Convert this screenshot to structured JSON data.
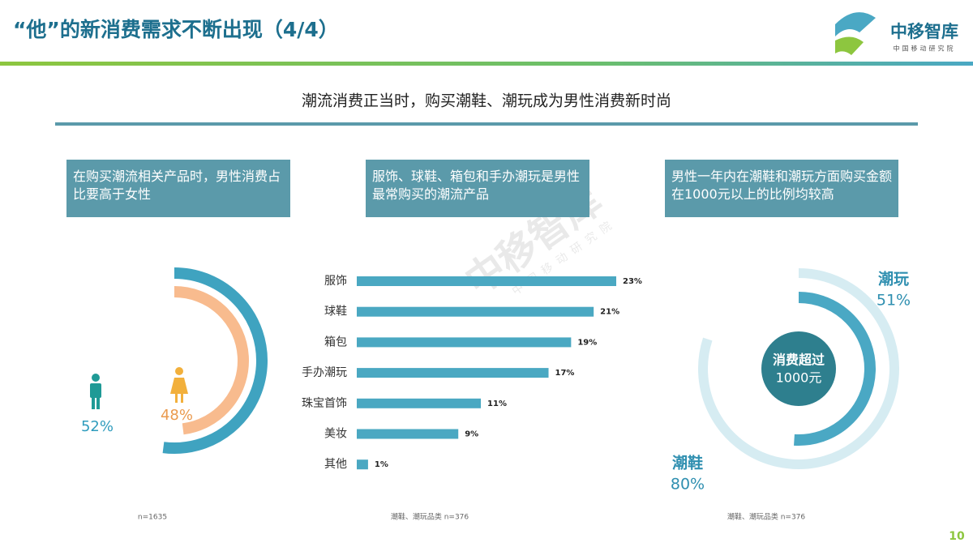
{
  "header": {
    "title": "“他”的新消费需求不断出现（4/4）",
    "logo": "中移智库",
    "logo_sub": "中国移动研究院"
  },
  "subtitle": "潮流消费正当时，购买潮鞋、潮玩成为男性消费新时尚",
  "panels": [
    "在购买潮流相关产品时，男性消费占比要高于女性",
    "服饰、球鞋、箱包和手办潮玩是男性最常购买的潮流产品",
    "男性一年内在潮鞋和潮玩方面购买金额在1000元以上的比例均较高"
  ],
  "page_number": "10",
  "chart_data": [
    {
      "type": "ring",
      "values": [
        52,
        48
      ],
      "value_labels": [
        "52%",
        "48%"
      ],
      "colors": [
        "#3fa3c0",
        "#f8bb8e"
      ],
      "label_colors": [
        "#2f9cbd",
        "#ea9a4e"
      ],
      "note": "n=1635"
    },
    {
      "type": "hbar",
      "categories": [
        "服饰",
        "球鞋",
        "箱包",
        "手办潮玩",
        "珠宝首饰",
        "美妆",
        "其他"
      ],
      "values": [
        23,
        21,
        19,
        17,
        11,
        9,
        1
      ],
      "value_labels": [
        "23%",
        "21%",
        "19%",
        "17%",
        "11%",
        "9%",
        "1%"
      ],
      "color": "#4aa8c2",
      "note": "潮鞋、潮玩品类 n=376"
    },
    {
      "type": "ring",
      "categories": [
        "潮玩",
        "潮鞋"
      ],
      "values": [
        51,
        80
      ],
      "value_labels": [
        "51%",
        "80%"
      ],
      "colors": [
        "#4aa8c4",
        "#d6ecf2"
      ],
      "label_colors": [
        "#2f8fb0",
        "#2f8fb0"
      ],
      "center_label": [
        "消费超过",
        "1000元"
      ],
      "note": "潮鞋、潮玩品类 n=376"
    }
  ]
}
